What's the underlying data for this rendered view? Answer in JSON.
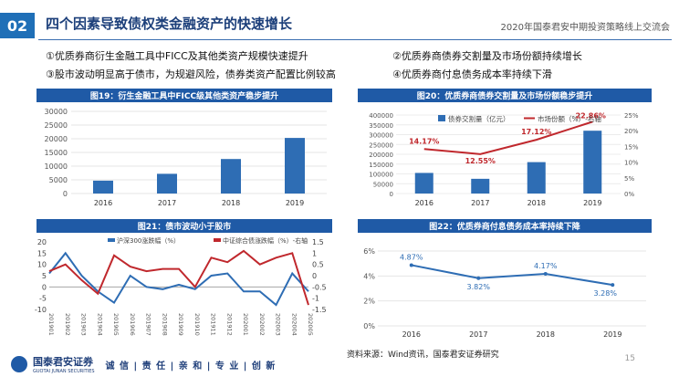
{
  "header": {
    "section_no": "02",
    "title": "四个因素导致债权类金融资产的快速增长",
    "right_text": "2020年国泰君安中期投资策略线上交流会"
  },
  "points": [
    "①优质券商衍生金融工具中FICC及其他类资产规模快速提升",
    "②优质券商债券交割量及市场份额持续增长",
    "③股市波动明显高于债市，为规避风险，债券类资产配置比例较高",
    "④优质券商付息债务成本率持续下滑"
  ],
  "charts": {
    "c19": {
      "title": "图19：衍生金融工具中FICC级其他类资产稳步提升"
    },
    "c20": {
      "title": "图20：优质券商债券交割量及市场份额稳步提升"
    },
    "c21": {
      "title": "图21：债市波动小于股市"
    },
    "c22": {
      "title": "图22：优质券商付息债务成本率持续下降"
    }
  },
  "chart_data": [
    {
      "id": "c19",
      "type": "bar",
      "categories": [
        "2016",
        "2017",
        "2018",
        "2019"
      ],
      "values": [
        4700,
        7200,
        12600,
        20300
      ],
      "ylim": [
        0,
        30000
      ],
      "yticks": [
        "0",
        "5000",
        "10000",
        "15000",
        "20000",
        "25000",
        "30000"
      ],
      "color": "#2e6db4"
    },
    {
      "id": "c20",
      "type": "bar+line",
      "categories": [
        "2016",
        "2017",
        "2018",
        "2019"
      ],
      "series": [
        {
          "name": "债券交割量（亿元）",
          "values": [
            105000,
            75000,
            160000,
            320000
          ],
          "color": "#2e6db4"
        },
        {
          "name": "市场份额（%）-右轴",
          "values": [
            14.17,
            12.55,
            17.12,
            22.86
          ],
          "color": "#c0282d"
        }
      ],
      "ylim": [
        0,
        400000
      ],
      "y2lim": [
        0,
        25
      ],
      "yticks": [
        "0",
        "50000",
        "100000",
        "150000",
        "200000",
        "250000",
        "300000",
        "350000",
        "400000"
      ],
      "y2ticks": [
        "0%",
        "5%",
        "10%",
        "15%",
        "20%",
        "25%"
      ],
      "labels": [
        "14.17%",
        "12.55%",
        "17.12%",
        "22.86%"
      ]
    },
    {
      "id": "c21",
      "type": "line",
      "x": [
        "201901",
        "201902",
        "201903",
        "201904",
        "201905",
        "201906",
        "201907",
        "201908",
        "201909",
        "201910",
        "201911",
        "201912",
        "202001",
        "202002",
        "202003",
        "202004",
        "202005"
      ],
      "series": [
        {
          "name": "沪深300涨跌幅（%）",
          "values": [
            6,
            15,
            5,
            -2,
            -7,
            5,
            0,
            -1,
            1,
            -1,
            5,
            6,
            -2,
            -2,
            -8,
            6,
            -2
          ],
          "color": "#2e6db4"
        },
        {
          "name": "中证综合债涨跌幅（%）-右轴",
          "values": [
            0.2,
            0.5,
            -0.2,
            -0.8,
            0.9,
            0.4,
            0.2,
            0.3,
            0.3,
            -0.5,
            0.8,
            0.6,
            1.1,
            0.5,
            0.8,
            1.0,
            -1.3
          ],
          "color": "#c0282d"
        }
      ],
      "ylim": [
        -10,
        20
      ],
      "y2lim": [
        -1.5,
        1.5
      ],
      "yticks": [
        "-10",
        "-5",
        "0",
        "5",
        "10",
        "15",
        "20"
      ],
      "y2ticks": [
        "-1.5",
        "-1",
        "-0.5",
        "0",
        "0.5",
        "1",
        "1.5"
      ]
    },
    {
      "id": "c22",
      "type": "line",
      "categories": [
        "2016",
        "2017",
        "2018",
        "2019"
      ],
      "values": [
        4.87,
        3.82,
        4.17,
        3.28
      ],
      "labels": [
        "4.87%",
        "3.82%",
        "4.17%",
        "3.28%"
      ],
      "ylim": [
        0,
        6
      ],
      "yticks": [
        "0%",
        "2%",
        "4%",
        "6%"
      ],
      "color": "#2e6db4"
    }
  ],
  "footer": {
    "logo_cn": "国泰君安证券",
    "logo_en": "GUOTAI JUNAN SECURITIES",
    "slogan": "诚 信 | 责 任 | 亲 和 | 专 业 | 创 新",
    "source": "资料来源：Wind资讯，国泰君安证券研究",
    "page": "15"
  }
}
